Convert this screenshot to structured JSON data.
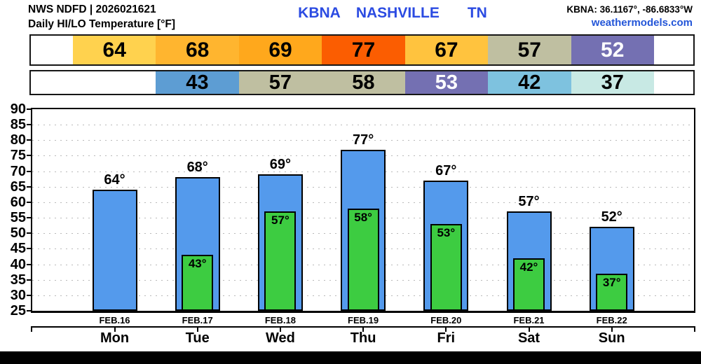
{
  "header": {
    "left_line1": "NWS NDFD | 2026021621",
    "left_line2": "Daily HI/LO Temperature [°F]",
    "station_code": "KBNA",
    "station_city": "NASHVILLE",
    "station_state": "TN",
    "coords": "KBNA: 36.1167°, -86.6833°W",
    "site_link": "weathermodels.com",
    "title_color": "#2B4BE2",
    "link_color": "#2456D8"
  },
  "strips": {
    "hi": {
      "lead_days": 0,
      "cells": [
        {
          "value": "64",
          "bg": "#FFD24E",
          "fg": "#000000"
        },
        {
          "value": "68",
          "bg": "#FFB52F",
          "fg": "#000000"
        },
        {
          "value": "69",
          "bg": "#FFA81C",
          "fg": "#000000"
        },
        {
          "value": "77",
          "bg": "#FB5D01",
          "fg": "#000000"
        },
        {
          "value": "67",
          "bg": "#FFC33E",
          "fg": "#000000"
        },
        {
          "value": "57",
          "bg": "#BFBFA1",
          "fg": "#000000"
        },
        {
          "value": "52",
          "bg": "#7470B2",
          "fg": "#FFFFFF"
        }
      ]
    },
    "lo": {
      "lead_days": 1,
      "cells": [
        {
          "value": "43",
          "bg": "#5D9DD3",
          "fg": "#000000"
        },
        {
          "value": "57",
          "bg": "#BFBFA1",
          "fg": "#000000"
        },
        {
          "value": "58",
          "bg": "#BFBFA1",
          "fg": "#000000"
        },
        {
          "value": "53",
          "bg": "#7470B2",
          "fg": "#FFFFFF"
        },
        {
          "value": "42",
          "bg": "#7EC2DF",
          "fg": "#000000"
        },
        {
          "value": "37",
          "bg": "#C8E9E4",
          "fg": "#000000"
        }
      ]
    }
  },
  "chart_data": {
    "type": "bar",
    "title": "Daily HI/LO Temperature [°F]",
    "station": "KBNA NASHVILLE TN",
    "ylim": [
      25,
      90
    ],
    "ytick_step": 5,
    "grid": "horizontal-dotted",
    "legend_position": "none",
    "categories_date": [
      "FEB.16",
      "FEB.17",
      "FEB.18",
      "FEB.19",
      "FEB.20",
      "FEB.21",
      "FEB.22"
    ],
    "categories_day": [
      "Mon",
      "Tue",
      "Wed",
      "Thu",
      "Fri",
      "Sat",
      "Sun"
    ],
    "series": [
      {
        "name": "HI",
        "color": "#549AEC",
        "values": [
          64,
          68,
          69,
          77,
          67,
          57,
          52
        ],
        "labels": [
          "64°",
          "68°",
          "69°",
          "77°",
          "67°",
          "57°",
          "52°"
        ]
      },
      {
        "name": "LO",
        "color": "#3DCC41",
        "values": [
          null,
          43,
          57,
          58,
          53,
          42,
          37
        ],
        "labels": [
          null,
          "43°",
          "57°",
          "58°",
          "53°",
          "42°",
          "37°"
        ]
      }
    ]
  }
}
